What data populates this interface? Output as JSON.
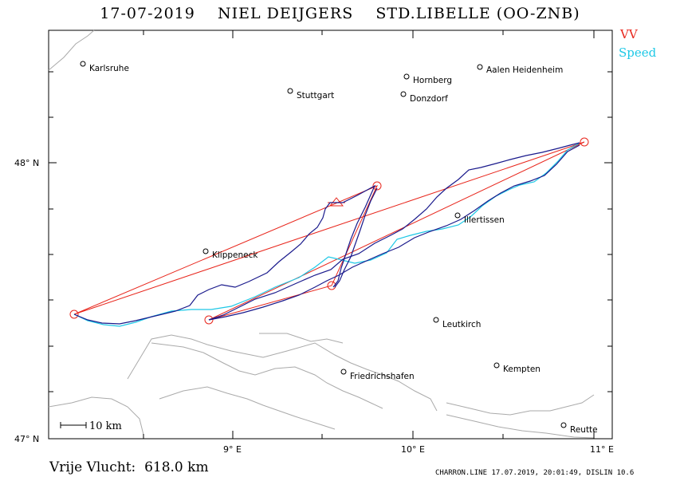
{
  "title": "17-07-2019    NIEL DEIJGERS    STD.LIBELLE (OO-ZNB)",
  "legend": {
    "vv": {
      "label": "VV",
      "color": "#e8261c"
    },
    "speed": {
      "label": "Speed",
      "color": "#1ec8e6"
    }
  },
  "colors": {
    "track": "#1a1a8c",
    "task": "#e8261c",
    "speed": "#1ec8e6",
    "terrain": "#aaaaaa"
  },
  "axes": {
    "lat_labels": [
      {
        "label": "48° N"
      },
      {
        "label": "47° N"
      }
    ],
    "lon_labels": [
      {
        "label": "9° E"
      },
      {
        "label": "10° E"
      },
      {
        "label": "11° E"
      }
    ]
  },
  "towns": [
    {
      "name": "Karlsruhe"
    },
    {
      "name": "Stuttgart"
    },
    {
      "name": "Hornberg"
    },
    {
      "name": "Donzdorf"
    },
    {
      "name": "Aalen Heidenheim"
    },
    {
      "name": "Illertissen"
    },
    {
      "name": "Klippeneck"
    },
    {
      "name": "Leutkirch"
    },
    {
      "name": "Friedrichshafen"
    },
    {
      "name": "Kempten"
    },
    {
      "name": "Reutte"
    }
  ],
  "scale_bar": {
    "label": "10 km"
  },
  "footer": {
    "distance": "Vrije Vlucht:  618.0 km",
    "stamp": "CHARRON.LINE 17.07.2019, 20:01:49, DISLIN 10.6"
  }
}
